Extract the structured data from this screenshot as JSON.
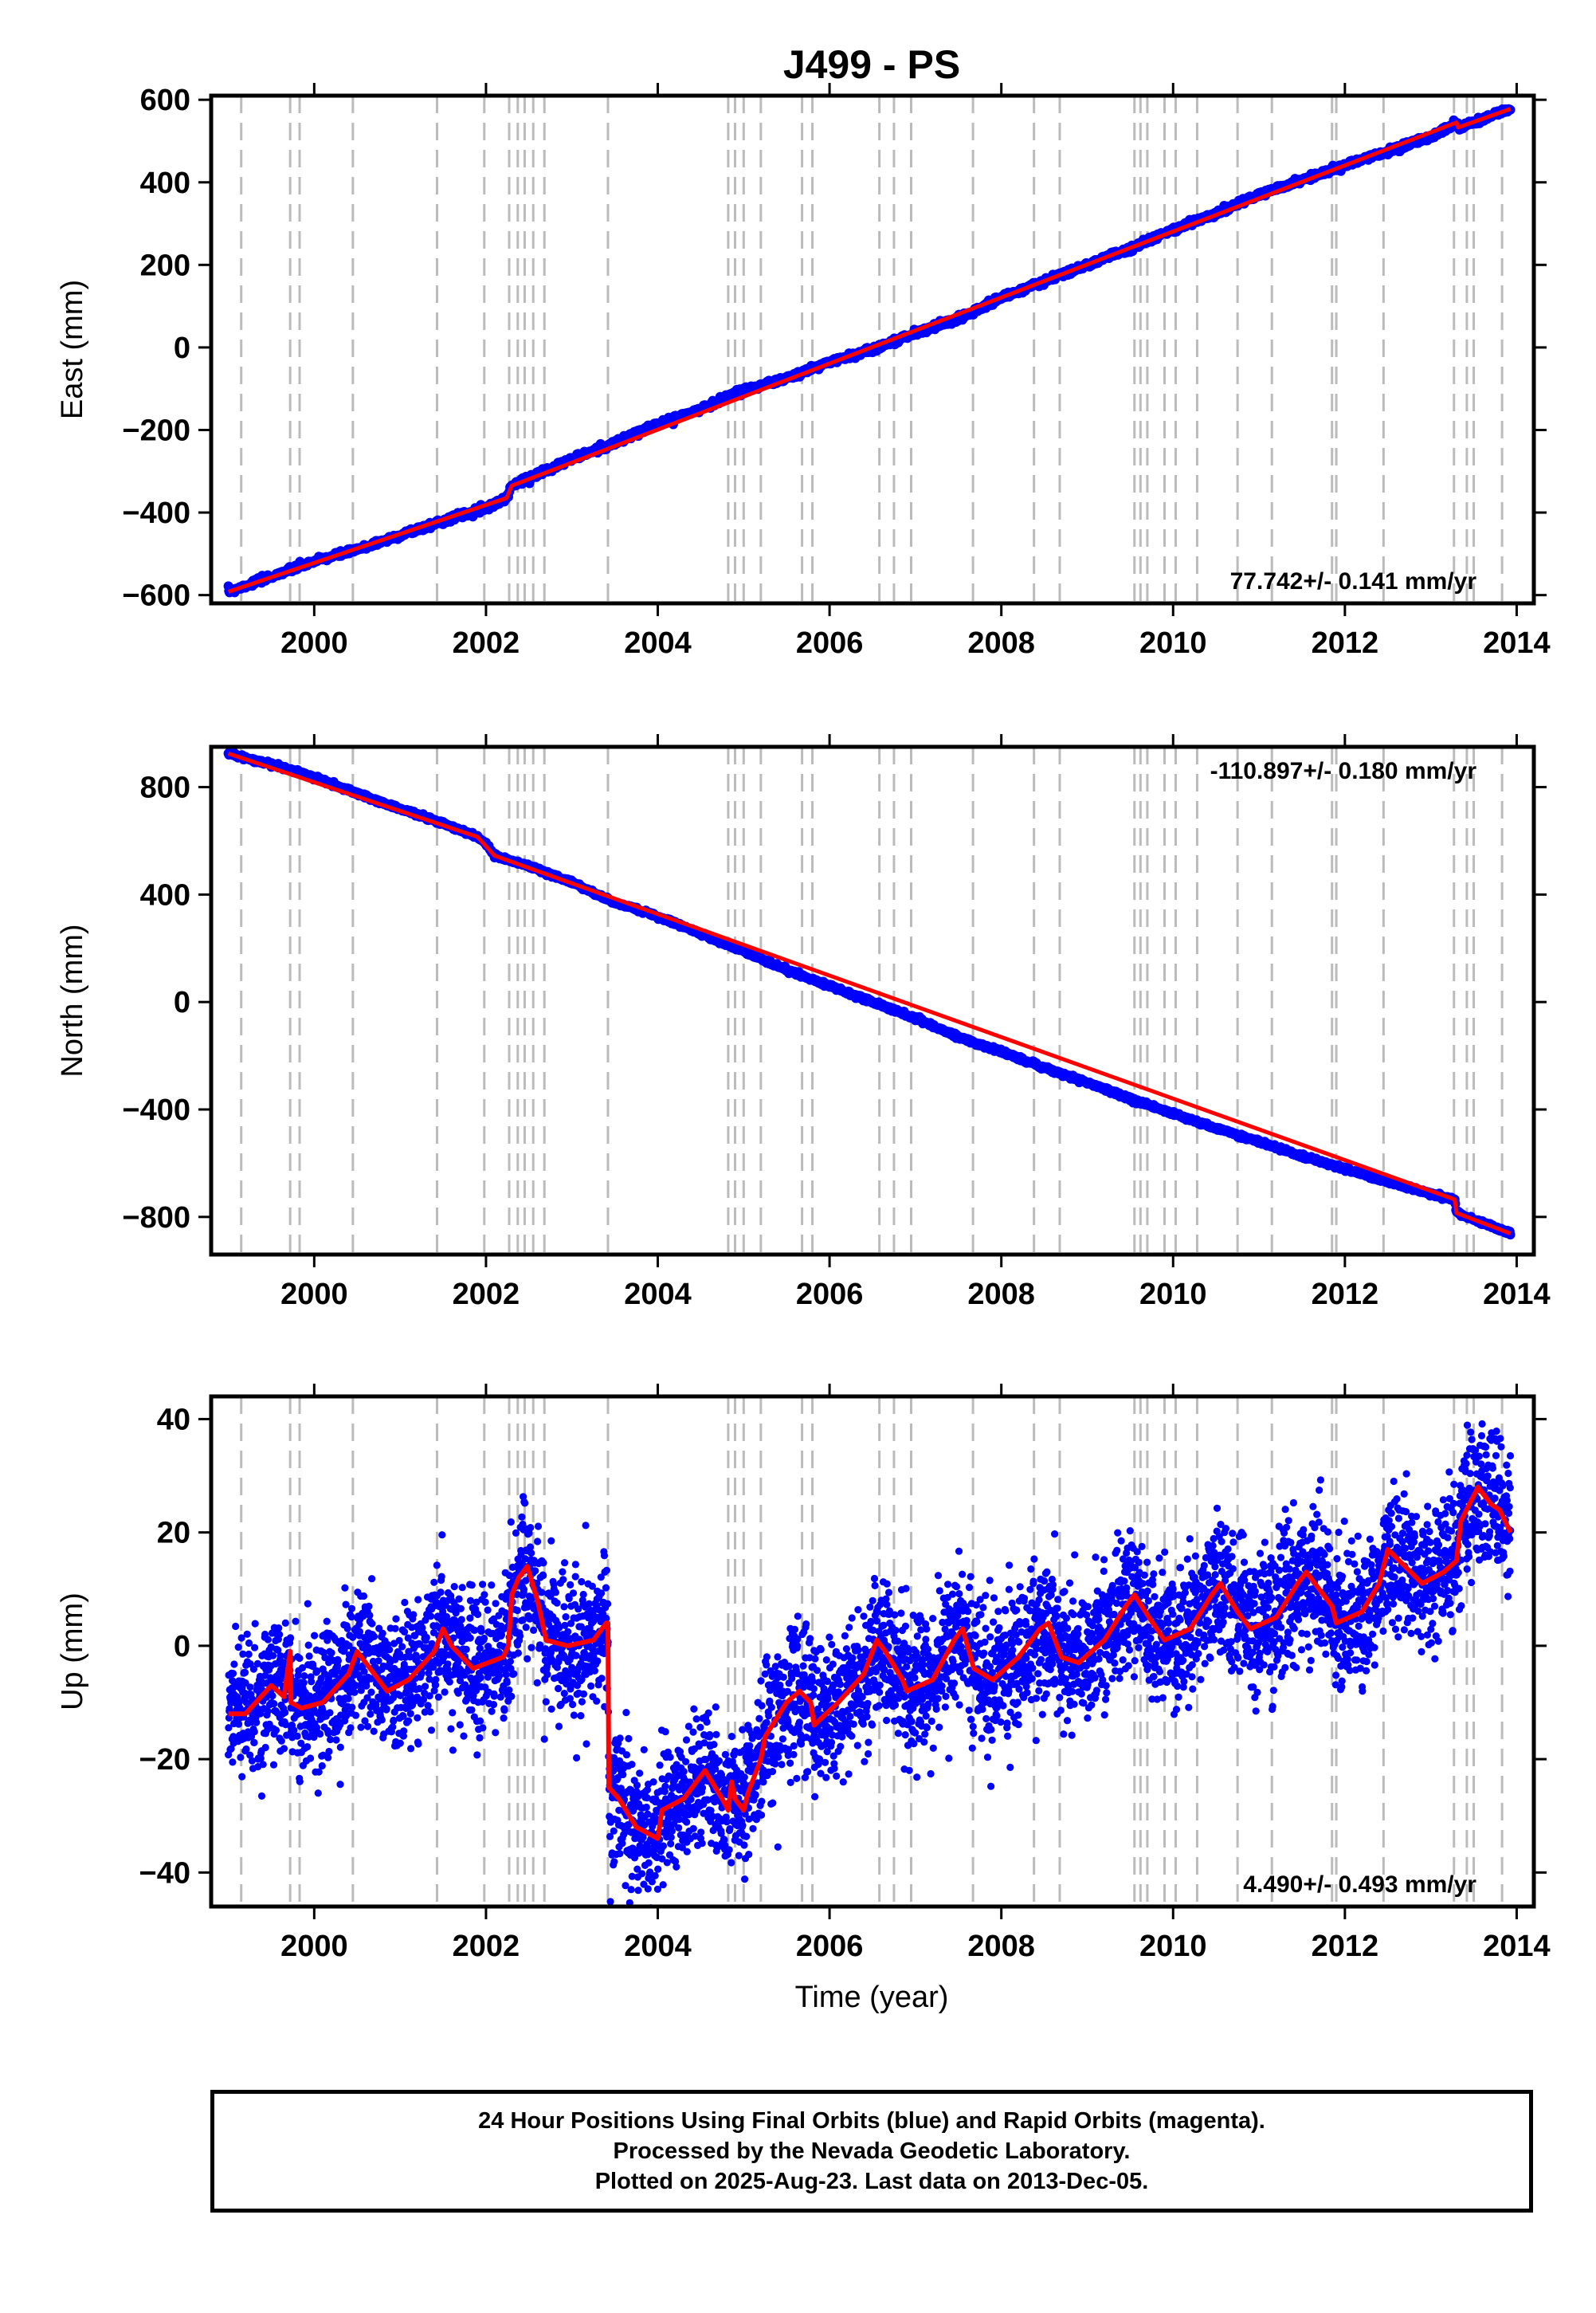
{
  "title": "J499 - PS",
  "colors": {
    "final_orbits": "#0000ff",
    "model_fit": "#ff0000",
    "offset_lines": "#bbbbbb",
    "axes": "#000000"
  },
  "x_axis": {
    "label": "Time (year)",
    "range": [
      1998.8,
      2014.2
    ],
    "ticks": [
      2000,
      2002,
      2004,
      2006,
      2008,
      2010,
      2012,
      2014
    ],
    "tick_labels": [
      "2000",
      "2002",
      "2004",
      "2006",
      "2008",
      "2010",
      "2012",
      "2014"
    ]
  },
  "offset_epochs": [
    1999.15,
    1999.72,
    1999.83,
    2000.45,
    2001.43,
    2001.98,
    2002.27,
    2002.37,
    2002.45,
    2002.55,
    2002.68,
    2003.42,
    2004.82,
    2004.9,
    2005.0,
    2005.2,
    2005.68,
    2005.8,
    2006.58,
    2006.75,
    2006.95,
    2007.67,
    2008.38,
    2008.68,
    2009.55,
    2009.62,
    2009.7,
    2009.9,
    2010.03,
    2010.28,
    2010.75,
    2011.15,
    2011.85,
    2011.9,
    2012.45,
    2013.27,
    2013.42,
    2013.5,
    2013.83
  ],
  "chart_data": [
    {
      "type": "scatter",
      "component": "east",
      "ylabel": "East (mm)",
      "ylim": [
        -620,
        610
      ],
      "yticks": [
        -600,
        -400,
        -200,
        0,
        200,
        400,
        600
      ],
      "ytick_labels": [
        "−600",
        "−400",
        "−200",
        "0",
        "200",
        "400",
        "600"
      ],
      "rate_label": "77.742+/- 0.141 mm/yr",
      "rate_position": "bottom-right",
      "series": [
        {
          "name": "Final Orbits",
          "color": "#0000ff",
          "x": [
            1999.0,
            1999.5,
            2000.0,
            2000.5,
            2001.0,
            2001.5,
            2002.0,
            2002.24,
            2002.3,
            2002.5,
            2003.0,
            2003.42,
            2003.5,
            2004.0,
            2004.5,
            2004.85,
            2005.0,
            2005.5,
            2006.0,
            2006.5,
            2007.0,
            2007.5,
            2008.0,
            2008.5,
            2009.0,
            2009.5,
            2010.0,
            2010.5,
            2011.0,
            2011.5,
            2012.0,
            2012.5,
            2013.0,
            2013.3,
            2013.32,
            2013.5,
            2013.93
          ],
          "y": [
            -592,
            -555,
            -518,
            -490,
            -455,
            -420,
            -388,
            -365,
            -335,
            -315,
            -270,
            -238,
            -232,
            -185,
            -150,
            -115,
            -103,
            -75,
            -35,
            -5,
            35,
            70,
            120,
            160,
            200,
            240,
            285,
            325,
            370,
            405,
            440,
            475,
            510,
            545,
            533,
            545,
            578
          ]
        },
        {
          "name": "Model",
          "color": "#ff0000",
          "x": [
            1999.0,
            2002.24,
            2002.3,
            2013.3,
            2013.32,
            2013.93
          ],
          "y": [
            -592,
            -365,
            -335,
            545,
            533,
            578
          ]
        }
      ]
    },
    {
      "type": "scatter",
      "component": "north",
      "ylabel": "North (mm)",
      "ylim": [
        -940,
        950
      ],
      "yticks": [
        -800,
        -400,
        0,
        400,
        800
      ],
      "ytick_labels": [
        "−800",
        "−400",
        "0",
        "400",
        "800"
      ],
      "rate_label": "-110.897+/- 0.180 mm/yr",
      "rate_position": "top-right",
      "series": [
        {
          "name": "Final Orbits",
          "color": "#0000ff",
          "x": [
            1999.0,
            1999.5,
            2000.0,
            2000.5,
            2001.0,
            2001.5,
            2001.9,
            2002.0,
            2002.1,
            2002.5,
            2003.0,
            2003.5,
            2004.0,
            2004.5,
            2005.0,
            2005.5,
            2006.0,
            2006.5,
            2007.0,
            2007.5,
            2008.0,
            2008.5,
            2009.0,
            2009.5,
            2010.0,
            2010.5,
            2011.0,
            2011.5,
            2012.0,
            2012.5,
            2013.0,
            2013.28,
            2013.3,
            2013.5,
            2013.93
          ],
          "y": [
            925,
            885,
            838,
            775,
            720,
            665,
            615,
            590,
            545,
            505,
            445,
            370,
            320,
            255,
            190,
            120,
            60,
            0,
            -60,
            -130,
            -185,
            -245,
            -300,
            -360,
            -415,
            -470,
            -520,
            -575,
            -620,
            -670,
            -715,
            -735,
            -785,
            -810,
            -862
          ]
        },
        {
          "name": "Model",
          "color": "#ff0000",
          "x": [
            1999.0,
            2001.9,
            2002.1,
            2013.28,
            2013.3,
            2013.93
          ],
          "y": [
            925,
            615,
            545,
            -735,
            -785,
            -862
          ]
        }
      ]
    },
    {
      "type": "scatter",
      "component": "up",
      "ylabel": "Up (mm)",
      "ylim": [
        -46,
        44
      ],
      "yticks": [
        -40,
        -20,
        0,
        20,
        40
      ],
      "ytick_labels": [
        "−40",
        "−20",
        "0",
        "20",
        "40"
      ],
      "rate_label": "4.490+/- 0.493 mm/yr",
      "rate_position": "bottom-right",
      "series": [
        {
          "name": "Model",
          "color": "#ff0000",
          "x": [
            1999.0,
            1999.2,
            1999.5,
            1999.65,
            1999.72,
            1999.73,
            1999.85,
            2000.1,
            2000.4,
            2000.5,
            2000.6,
            2000.85,
            2001.1,
            2001.4,
            2001.5,
            2001.6,
            2001.85,
            2002.2,
            2002.26,
            2002.3,
            2002.38,
            2002.48,
            2002.6,
            2002.7,
            2002.95,
            2003.25,
            2003.4,
            2003.42,
            2003.43,
            2003.55,
            2003.75,
            2004.0,
            2004.05,
            2004.3,
            2004.55,
            2004.75,
            2004.82,
            2004.86,
            2004.9,
            2005.0,
            2005.05,
            2005.2,
            2005.25,
            2005.5,
            2005.65,
            2005.78,
            2005.82,
            2006.1,
            2006.4,
            2006.55,
            2006.65,
            2006.85,
            2006.9,
            2007.2,
            2007.45,
            2007.55,
            2007.68,
            2007.9,
            2008.2,
            2008.45,
            2008.55,
            2008.7,
            2008.9,
            2009.2,
            2009.45,
            2009.55,
            2009.72,
            2009.9,
            2010.2,
            2010.45,
            2010.55,
            2010.75,
            2010.9,
            2011.2,
            2011.45,
            2011.55,
            2011.85,
            2011.9,
            2012.2,
            2012.4,
            2012.5,
            2012.7,
            2012.9,
            2013.15,
            2013.3,
            2013.35,
            2013.55,
            2013.7,
            2013.8,
            2013.93
          ],
          "y": [
            -12,
            -12,
            -7,
            -9,
            -1,
            -10,
            -11,
            -10,
            -5,
            -1,
            -3,
            -8,
            -6,
            -1,
            3,
            0,
            -4,
            -2,
            0,
            9,
            12,
            14,
            8,
            1,
            0,
            1,
            4,
            4,
            -25,
            -27,
            -32,
            -34,
            -29,
            -27,
            -22,
            -27,
            -29,
            -24,
            -27,
            -29,
            -26,
            -20,
            -16,
            -10,
            -8,
            -10,
            -14,
            -10,
            -5,
            1,
            -1,
            -6,
            -8,
            -6,
            1,
            3,
            -4,
            -6,
            -2,
            3,
            4,
            -2,
            -3,
            1,
            7,
            9,
            5,
            1,
            3,
            9,
            11,
            6,
            3,
            5,
            11,
            13,
            7,
            4,
            6,
            11,
            17,
            14,
            11,
            13,
            15,
            22,
            28,
            25,
            24,
            20
          ]
        }
      ],
      "scatter_spread_mm": 6
    }
  ],
  "caption": {
    "line1": "24 Hour Positions Using Final Orbits (blue) and Rapid Orbits (magenta).",
    "line2": "Processed by the Nevada Geodetic Laboratory.",
    "line3": "Plotted on 2025-Aug-23. Last data on 2013-Dec-05."
  }
}
